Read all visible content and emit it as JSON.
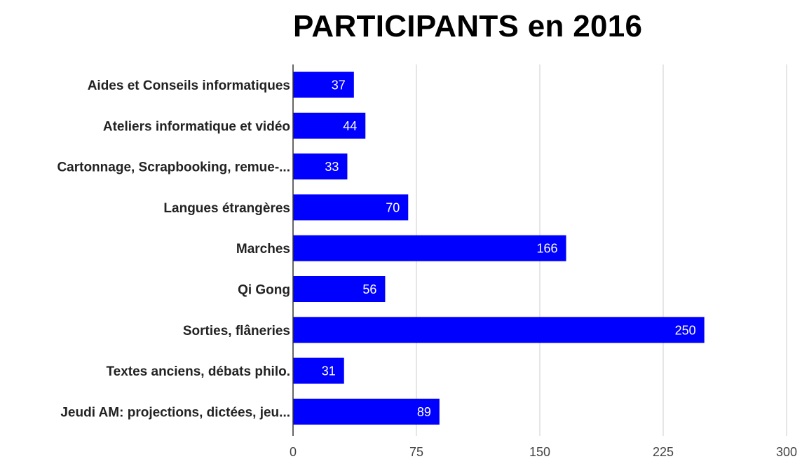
{
  "chart_data": {
    "type": "bar",
    "orientation": "horizontal",
    "title": "PARTICIPANTS en 2016",
    "xlabel": "",
    "ylabel": "",
    "categories": [
      "Aides et Conseils informatiques",
      "Ateliers informatique et vidéo",
      "Cartonnage, Scrapbooking, remue-...",
      "Langues étrangères",
      "Marches",
      "Qi Gong",
      "Sorties, flâneries",
      "Textes anciens, débats philo.",
      "Jeudi AM: projections, dictées, jeu..."
    ],
    "values": [
      37,
      44,
      33,
      70,
      166,
      56,
      250,
      31,
      89
    ],
    "xlim": [
      0,
      300
    ],
    "xticks": [
      0,
      75,
      150,
      225,
      300
    ],
    "bar_color": "#0000ff",
    "grid": true,
    "legend": "none",
    "data_labels": true
  }
}
